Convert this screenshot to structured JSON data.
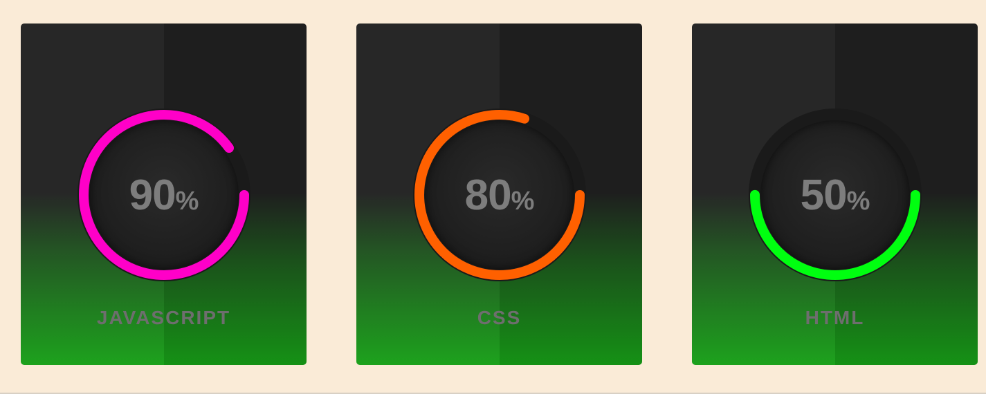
{
  "skills": [
    {
      "name": "JAVASCRIPT",
      "percent": 90,
      "percent_label": "90",
      "sign": "%",
      "ring_color": "#ff00c8",
      "icon": "progress-ring-icon"
    },
    {
      "name": "CSS",
      "percent": 80,
      "percent_label": "80",
      "sign": "%",
      "ring_color": "#ff6000",
      "icon": "progress-ring-icon"
    },
    {
      "name": "HTML",
      "percent": 50,
      "percent_label": "50",
      "sign": "%",
      "ring_color": "#00ff10",
      "icon": "progress-ring-icon"
    }
  ],
  "colors": {
    "background": "#faebd7",
    "track": "#1a1a1a",
    "text": "#7d7d7d"
  }
}
